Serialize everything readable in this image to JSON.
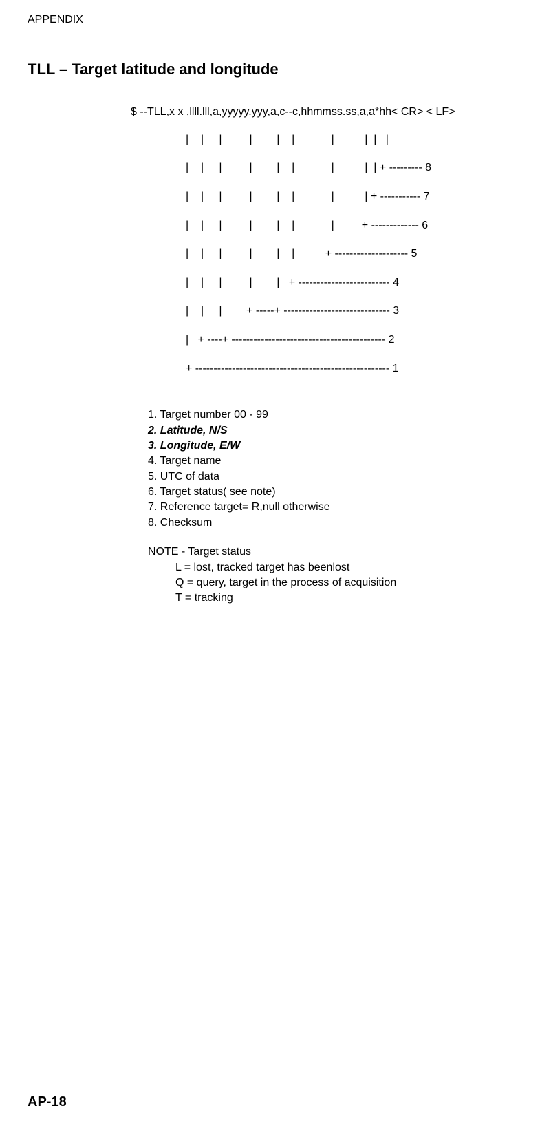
{
  "header": {
    "appendix_label": "APPENDIX"
  },
  "title": "TLL – Target latitude and longitude",
  "nmea": {
    "sentence": "$ --TLL,x x ,llll.lll,a,yyyyy.yyy,a,c--c,hhmmss.ss,a,a*hh< CR> < LF>"
  },
  "tree": {
    "line1": "|    |     |         |        |    |            |          |  |   |",
    "line2": "|    |     |         |        |    |            |          |  | + --------- 8",
    "line3": "|    |     |         |        |    |            |          | + ----------- 7",
    "line4": "|    |     |         |        |    |            |         + ------------- 6",
    "line5": "|    |     |         |        |    |          + -------------------- 5",
    "line6": "|    |     |         |        |   + ------------------------- 4",
    "line7": "|    |     |        + -----+ ----------------------------- 3",
    "line8": "|   + ----+ ------------------------------------------ 2",
    "line9": "+ ----------------------------------------------------- 1"
  },
  "definitions": {
    "d1": "1. Target number 00 - 99",
    "d2": "2. Latitude, N/S",
    "d3": "3. Longitude, E/W",
    "d4": "4. Target name",
    "d5": "5. UTC of data",
    "d6": "6. Target status( see note)",
    "d7": "7. Reference target= R,null otherwise",
    "d8": "8. Checksum"
  },
  "note": {
    "header": "NOTE - Target status",
    "l": "L =  lost, tracked target has beenlost",
    "q": "Q =  query, target in the process of acquisition",
    "t": "T =  tracking"
  },
  "footer": {
    "page_number": "AP-18"
  }
}
